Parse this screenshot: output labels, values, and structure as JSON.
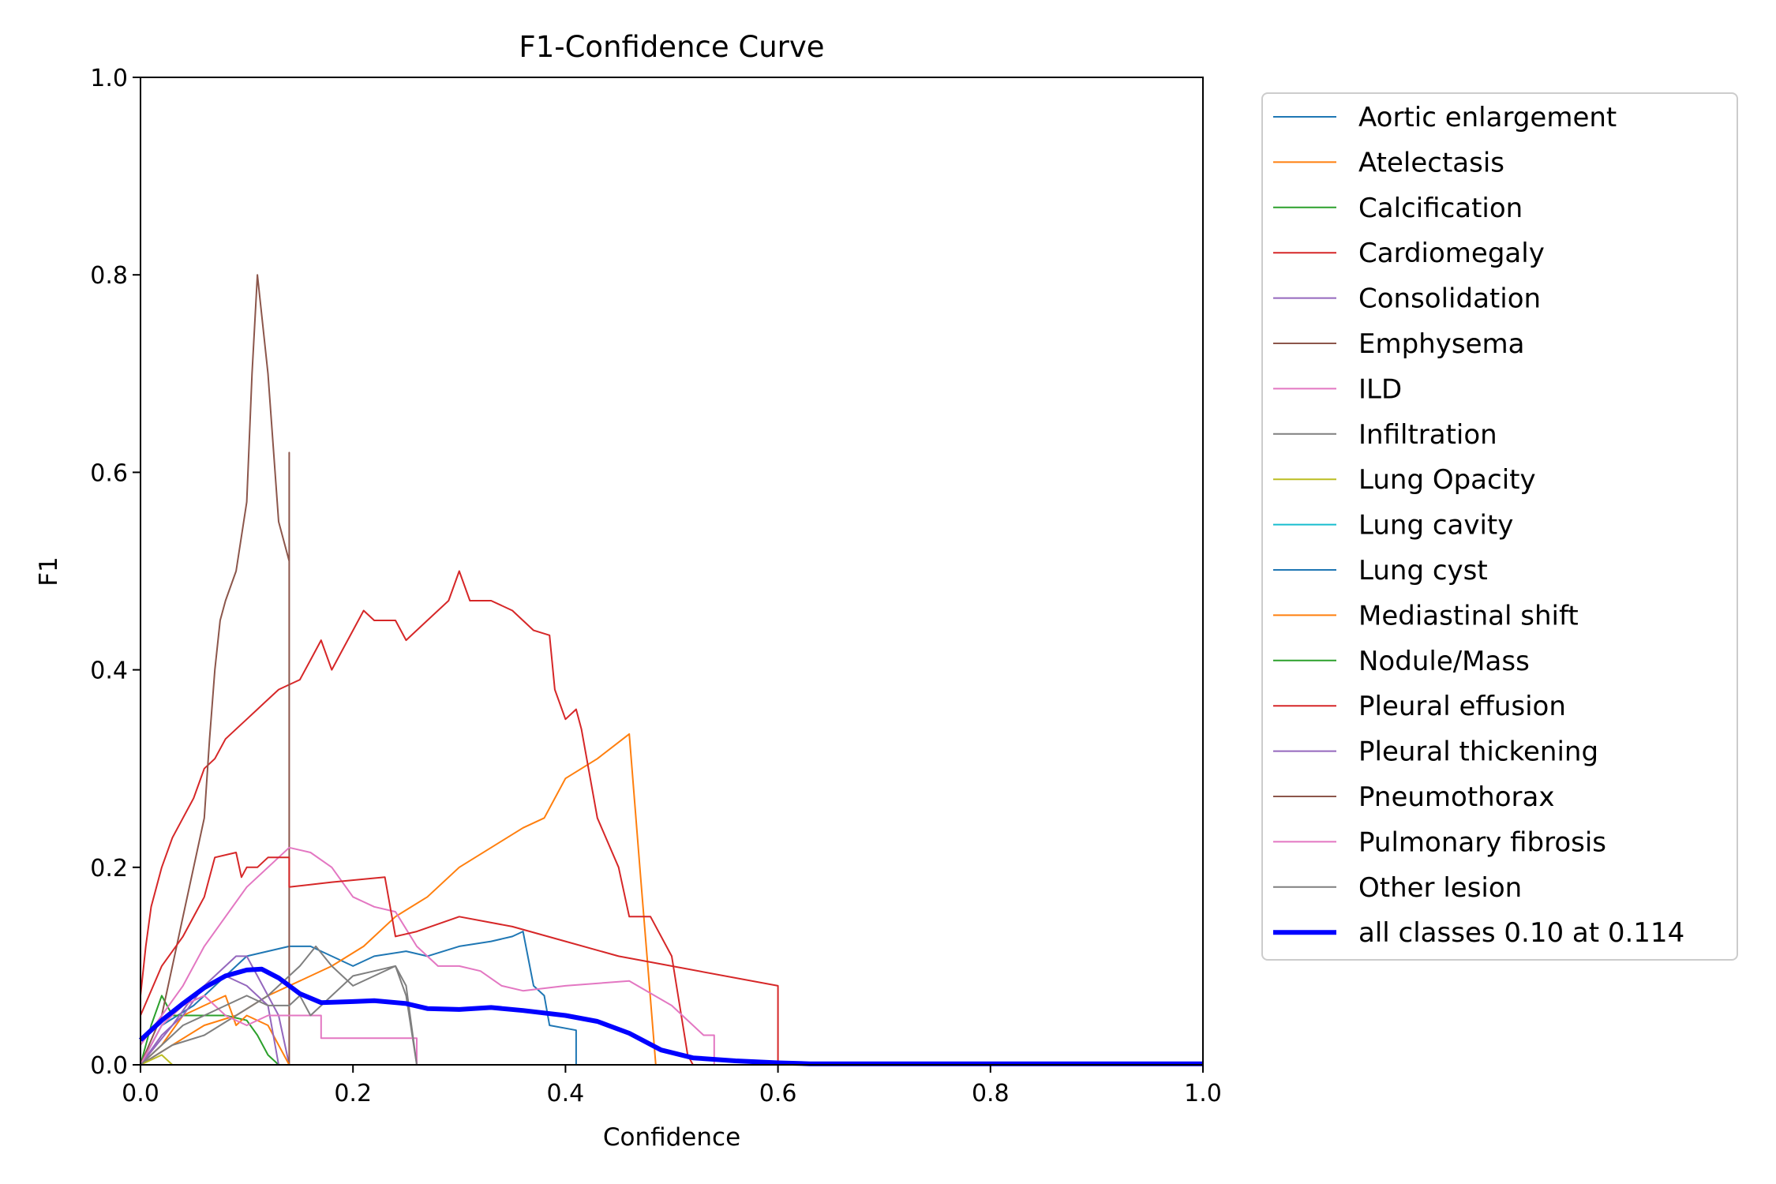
{
  "chart_data": {
    "type": "line",
    "title": "F1-Confidence Curve",
    "xlabel": "Confidence",
    "ylabel": "F1",
    "xlim": [
      0,
      1
    ],
    "ylim": [
      0,
      1
    ],
    "xticks": [
      "0.0",
      "0.2",
      "0.4",
      "0.6",
      "0.8",
      "1.0"
    ],
    "yticks": [
      "0.0",
      "0.2",
      "0.4",
      "0.6",
      "0.8",
      "1.0"
    ],
    "grid": false,
    "legend_position": "outside-right",
    "series": [
      {
        "name": "Aortic enlargement",
        "color": "#1f77b4",
        "width": 2,
        "points": [
          [
            0,
            0
          ],
          [
            0.02,
            0.04
          ],
          [
            0.05,
            0.06
          ],
          [
            0.08,
            0.09
          ],
          [
            0.1,
            0.11
          ],
          [
            0.12,
            0.115
          ],
          [
            0.14,
            0.12
          ],
          [
            0.16,
            0.12
          ],
          [
            0.18,
            0.11
          ],
          [
            0.2,
            0.1
          ],
          [
            0.22,
            0.11
          ],
          [
            0.25,
            0.115
          ],
          [
            0.27,
            0.11
          ],
          [
            0.3,
            0.12
          ],
          [
            0.33,
            0.125
          ],
          [
            0.35,
            0.13
          ],
          [
            0.36,
            0.135
          ],
          [
            0.37,
            0.08
          ],
          [
            0.38,
            0.07
          ],
          [
            0.385,
            0.04
          ],
          [
            0.41,
            0.035
          ],
          [
            0.41,
            0
          ]
        ]
      },
      {
        "name": "Atelectasis",
        "color": "#ff7f0e",
        "width": 2,
        "points": [
          [
            0,
            0
          ],
          [
            0.03,
            0.02
          ],
          [
            0.06,
            0.04
          ],
          [
            0.09,
            0.05
          ],
          [
            0.12,
            0.07
          ],
          [
            0.15,
            0.085
          ],
          [
            0.18,
            0.1
          ],
          [
            0.21,
            0.12
          ],
          [
            0.24,
            0.15
          ],
          [
            0.27,
            0.17
          ],
          [
            0.3,
            0.2
          ],
          [
            0.33,
            0.22
          ],
          [
            0.36,
            0.24
          ],
          [
            0.38,
            0.25
          ],
          [
            0.4,
            0.29
          ],
          [
            0.43,
            0.31
          ],
          [
            0.46,
            0.335
          ],
          [
            0.47,
            0.2
          ],
          [
            0.485,
            0
          ]
        ]
      },
      {
        "name": "Calcification",
        "color": "#2ca02c",
        "width": 2,
        "points": [
          [
            0,
            0
          ],
          [
            0.01,
            0.04
          ],
          [
            0.02,
            0.07
          ],
          [
            0.03,
            0.05
          ],
          [
            0.05,
            0.05
          ],
          [
            0.08,
            0.05
          ],
          [
            0.1,
            0.045
          ],
          [
            0.11,
            0.03
          ],
          [
            0.12,
            0.01
          ],
          [
            0.13,
            0
          ]
        ]
      },
      {
        "name": "Cardiomegaly",
        "color": "#d62728",
        "width": 2,
        "points": [
          [
            0,
            0.07
          ],
          [
            0.005,
            0.12
          ],
          [
            0.01,
            0.16
          ],
          [
            0.02,
            0.2
          ],
          [
            0.03,
            0.23
          ],
          [
            0.04,
            0.25
          ],
          [
            0.05,
            0.27
          ],
          [
            0.06,
            0.3
          ],
          [
            0.07,
            0.31
          ],
          [
            0.08,
            0.33
          ],
          [
            0.09,
            0.34
          ],
          [
            0.1,
            0.35
          ],
          [
            0.11,
            0.36
          ],
          [
            0.12,
            0.37
          ],
          [
            0.13,
            0.38
          ],
          [
            0.14,
            0.385
          ],
          [
            0.15,
            0.39
          ],
          [
            0.16,
            0.41
          ],
          [
            0.17,
            0.43
          ],
          [
            0.18,
            0.4
          ],
          [
            0.19,
            0.42
          ],
          [
            0.2,
            0.44
          ],
          [
            0.21,
            0.46
          ],
          [
            0.22,
            0.45
          ],
          [
            0.24,
            0.45
          ],
          [
            0.25,
            0.43
          ],
          [
            0.27,
            0.45
          ],
          [
            0.29,
            0.47
          ],
          [
            0.3,
            0.5
          ],
          [
            0.31,
            0.47
          ],
          [
            0.33,
            0.47
          ],
          [
            0.35,
            0.46
          ],
          [
            0.37,
            0.44
          ],
          [
            0.385,
            0.435
          ],
          [
            0.39,
            0.38
          ],
          [
            0.4,
            0.35
          ],
          [
            0.41,
            0.36
          ],
          [
            0.415,
            0.34
          ],
          [
            0.43,
            0.25
          ],
          [
            0.45,
            0.2
          ],
          [
            0.46,
            0.15
          ],
          [
            0.48,
            0.15
          ],
          [
            0.5,
            0.11
          ],
          [
            0.515,
            0.01
          ],
          [
            0.52,
            0
          ]
        ]
      },
      {
        "name": "Consolidation",
        "color": "#9467bd",
        "width": 2,
        "points": [
          [
            0,
            0
          ],
          [
            0.03,
            0.04
          ],
          [
            0.05,
            0.07
          ],
          [
            0.07,
            0.09
          ],
          [
            0.09,
            0.11
          ],
          [
            0.1,
            0.11
          ],
          [
            0.11,
            0.09
          ],
          [
            0.12,
            0.07
          ],
          [
            0.13,
            0.05
          ],
          [
            0.14,
            0
          ]
        ]
      },
      {
        "name": "Emphysema",
        "color": "#8c564b",
        "width": 2,
        "points": [
          [
            0,
            0
          ],
          [
            0.02,
            0.05
          ],
          [
            0.03,
            0.1
          ],
          [
            0.04,
            0.15
          ],
          [
            0.05,
            0.2
          ],
          [
            0.06,
            0.25
          ],
          [
            0.065,
            0.33
          ],
          [
            0.07,
            0.4
          ],
          [
            0.075,
            0.45
          ],
          [
            0.08,
            0.47
          ],
          [
            0.09,
            0.5
          ],
          [
            0.1,
            0.57
          ],
          [
            0.105,
            0.7
          ],
          [
            0.11,
            0.8
          ],
          [
            0.12,
            0.7
          ],
          [
            0.13,
            0.55
          ],
          [
            0.14,
            0.51
          ],
          [
            0.14,
            0.62
          ],
          [
            0.14,
            0
          ]
        ]
      },
      {
        "name": "ILD",
        "color": "#e377c2",
        "width": 2,
        "points": [
          [
            0,
            0.02
          ],
          [
            0.02,
            0.05
          ],
          [
            0.04,
            0.08
          ],
          [
            0.06,
            0.12
          ],
          [
            0.08,
            0.15
          ],
          [
            0.1,
            0.18
          ],
          [
            0.12,
            0.2
          ],
          [
            0.14,
            0.22
          ],
          [
            0.16,
            0.215
          ],
          [
            0.18,
            0.2
          ],
          [
            0.2,
            0.17
          ],
          [
            0.22,
            0.16
          ],
          [
            0.24,
            0.155
          ],
          [
            0.26,
            0.12
          ],
          [
            0.28,
            0.1
          ],
          [
            0.3,
            0.1
          ],
          [
            0.32,
            0.095
          ],
          [
            0.34,
            0.08
          ],
          [
            0.36,
            0.075
          ],
          [
            0.4,
            0.08
          ],
          [
            0.46,
            0.085
          ],
          [
            0.5,
            0.06
          ],
          [
            0.53,
            0.03
          ],
          [
            0.54,
            0.03
          ],
          [
            0.54,
            0
          ]
        ]
      },
      {
        "name": "Infiltration",
        "color": "#7f7f7f",
        "width": 2,
        "points": [
          [
            0,
            0
          ],
          [
            0.03,
            0.02
          ],
          [
            0.06,
            0.03
          ],
          [
            0.09,
            0.05
          ],
          [
            0.12,
            0.07
          ],
          [
            0.15,
            0.1
          ],
          [
            0.165,
            0.12
          ],
          [
            0.18,
            0.1
          ],
          [
            0.2,
            0.08
          ],
          [
            0.22,
            0.09
          ],
          [
            0.24,
            0.1
          ],
          [
            0.25,
            0.07
          ],
          [
            0.26,
            0
          ]
        ]
      },
      {
        "name": "Lung Opacity",
        "color": "#bcbd22",
        "width": 2,
        "points": [
          [
            0,
            0
          ],
          [
            0.02,
            0.01
          ],
          [
            0.03,
            0
          ]
        ]
      },
      {
        "name": "Lung cavity",
        "color": "#17becf",
        "width": 2,
        "points": [
          [
            0,
            0
          ],
          [
            1,
            0
          ]
        ]
      },
      {
        "name": "Lung cyst",
        "color": "#1f77b4",
        "width": 2,
        "points": [
          [
            0,
            0
          ],
          [
            1,
            0
          ]
        ]
      },
      {
        "name": "Mediastinal shift",
        "color": "#ff7f0e",
        "width": 2,
        "points": [
          [
            0,
            0
          ],
          [
            0.02,
            0.02
          ],
          [
            0.04,
            0.05
          ],
          [
            0.06,
            0.06
          ],
          [
            0.08,
            0.07
          ],
          [
            0.09,
            0.04
          ],
          [
            0.1,
            0.05
          ],
          [
            0.12,
            0.04
          ],
          [
            0.14,
            0
          ]
        ]
      },
      {
        "name": "Nodule/Mass",
        "color": "#2ca02c",
        "width": 2,
        "points": [
          [
            0,
            0
          ],
          [
            1,
            0
          ]
        ]
      },
      {
        "name": "Pleural effusion",
        "color": "#d62728",
        "width": 2,
        "points": [
          [
            0,
            0.05
          ],
          [
            0.02,
            0.1
          ],
          [
            0.04,
            0.13
          ],
          [
            0.06,
            0.17
          ],
          [
            0.07,
            0.21
          ],
          [
            0.09,
            0.215
          ],
          [
            0.095,
            0.19
          ],
          [
            0.1,
            0.2
          ],
          [
            0.11,
            0.2
          ],
          [
            0.12,
            0.21
          ],
          [
            0.14,
            0.21
          ],
          [
            0.14,
            0.18
          ],
          [
            0.18,
            0.185
          ],
          [
            0.23,
            0.19
          ],
          [
            0.24,
            0.13
          ],
          [
            0.26,
            0.135
          ],
          [
            0.3,
            0.15
          ],
          [
            0.35,
            0.14
          ],
          [
            0.4,
            0.125
          ],
          [
            0.45,
            0.11
          ],
          [
            0.5,
            0.1
          ],
          [
            0.6,
            0.08
          ],
          [
            0.6,
            0
          ]
        ]
      },
      {
        "name": "Pleural thickening",
        "color": "#9467bd",
        "width": 2,
        "points": [
          [
            0,
            0
          ],
          [
            0.02,
            0.03
          ],
          [
            0.04,
            0.05
          ],
          [
            0.06,
            0.08
          ],
          [
            0.08,
            0.09
          ],
          [
            0.1,
            0.08
          ],
          [
            0.12,
            0.06
          ],
          [
            0.13,
            0
          ]
        ]
      },
      {
        "name": "Pneumothorax",
        "color": "#8c564b",
        "width": 2,
        "points": [
          [
            0,
            0
          ],
          [
            1,
            0
          ]
        ]
      },
      {
        "name": "Pulmonary fibrosis",
        "color": "#e377c2",
        "width": 2,
        "points": [
          [
            0,
            0
          ],
          [
            0.02,
            0.04
          ],
          [
            0.04,
            0.06
          ],
          [
            0.06,
            0.07
          ],
          [
            0.08,
            0.05
          ],
          [
            0.1,
            0.04
          ],
          [
            0.12,
            0.05
          ],
          [
            0.14,
            0.05
          ],
          [
            0.17,
            0.05
          ],
          [
            0.17,
            0.027
          ],
          [
            0.2,
            0.027
          ],
          [
            0.25,
            0.027
          ],
          [
            0.26,
            0.027
          ],
          [
            0.26,
            0
          ]
        ]
      },
      {
        "name": "Other lesion",
        "color": "#7f7f7f",
        "width": 2,
        "points": [
          [
            0,
            0
          ],
          [
            0.02,
            0.02
          ],
          [
            0.04,
            0.04
          ],
          [
            0.06,
            0.05
          ],
          [
            0.08,
            0.06
          ],
          [
            0.1,
            0.07
          ],
          [
            0.12,
            0.06
          ],
          [
            0.14,
            0.06
          ],
          [
            0.15,
            0.07
          ],
          [
            0.16,
            0.05
          ],
          [
            0.18,
            0.07
          ],
          [
            0.2,
            0.09
          ],
          [
            0.22,
            0.095
          ],
          [
            0.24,
            0.1
          ],
          [
            0.25,
            0.08
          ],
          [
            0.26,
            0
          ]
        ]
      },
      {
        "name": "all classes 0.10 at 0.114",
        "color": "#0000ff",
        "width": 6,
        "points": [
          [
            0,
            0.025
          ],
          [
            0.02,
            0.045
          ],
          [
            0.04,
            0.062
          ],
          [
            0.06,
            0.078
          ],
          [
            0.08,
            0.09
          ],
          [
            0.1,
            0.096
          ],
          [
            0.114,
            0.097
          ],
          [
            0.13,
            0.088
          ],
          [
            0.15,
            0.072
          ],
          [
            0.17,
            0.063
          ],
          [
            0.2,
            0.064
          ],
          [
            0.22,
            0.065
          ],
          [
            0.25,
            0.062
          ],
          [
            0.27,
            0.057
          ],
          [
            0.3,
            0.056
          ],
          [
            0.33,
            0.058
          ],
          [
            0.36,
            0.055
          ],
          [
            0.4,
            0.05
          ],
          [
            0.43,
            0.044
          ],
          [
            0.46,
            0.032
          ],
          [
            0.49,
            0.015
          ],
          [
            0.52,
            0.007
          ],
          [
            0.56,
            0.004
          ],
          [
            0.6,
            0.002
          ],
          [
            0.63,
            0.001
          ],
          [
            0.7,
            0.001
          ],
          [
            0.8,
            0.001
          ],
          [
            0.9,
            0.001
          ],
          [
            1.0,
            0.001
          ]
        ]
      }
    ]
  }
}
